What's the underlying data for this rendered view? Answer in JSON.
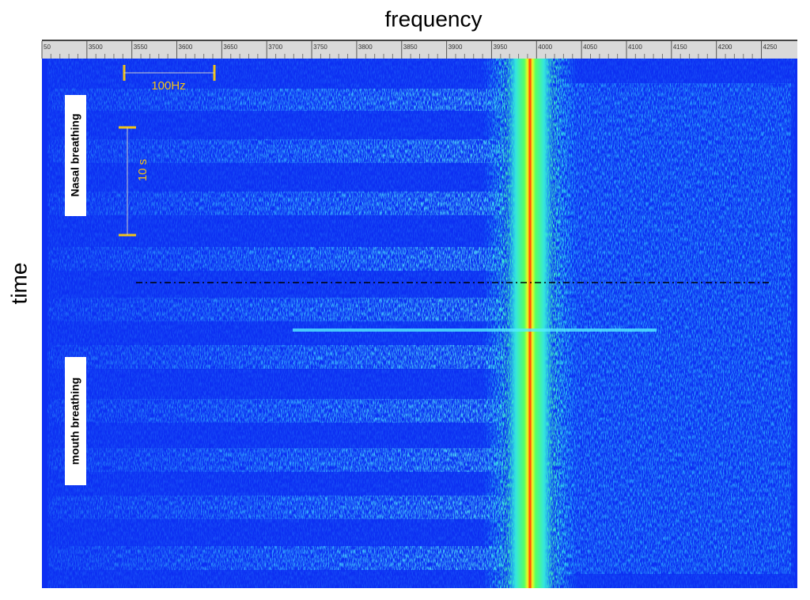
{
  "chart_data": {
    "type": "spectrogram",
    "title": "frequency",
    "y_label": "time",
    "xlim": [
      3450,
      4290
    ],
    "xticks": [
      {
        "value": 3450,
        "label": "50"
      },
      3500,
      3550,
      3600,
      3650,
      3700,
      3750,
      3800,
      3850,
      3900,
      3950,
      4000,
      4050,
      4100,
      4150,
      4200,
      4250
    ],
    "annotations": {
      "freq_scale": "100Hz",
      "time_scale": "10 s",
      "top_section": "Nasal breathing",
      "bottom_section": "mouth breathing"
    }
  }
}
